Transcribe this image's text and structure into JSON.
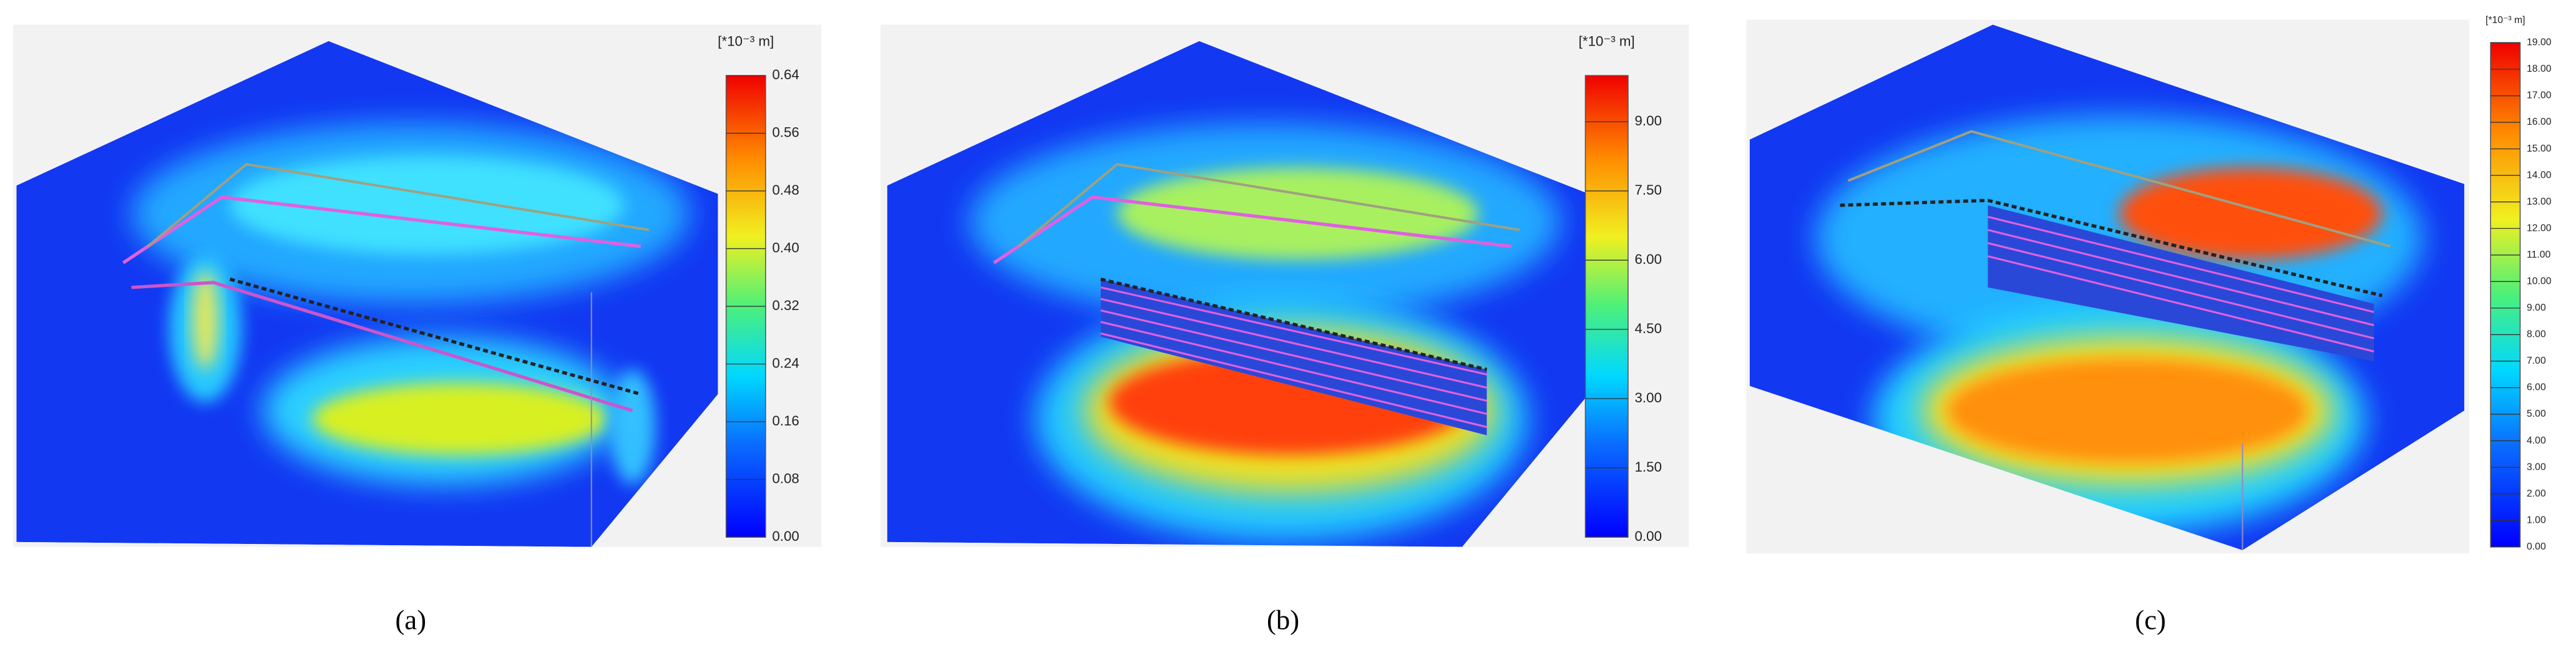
{
  "panels": [
    {
      "caption": "(a)",
      "unit": "[*10⁻³ m]",
      "lim": [
        0,
        0.64
      ],
      "ticks": [
        {
          "value": 0,
          "label": "0.00"
        },
        {
          "value": 0.08,
          "label": "0.08"
        },
        {
          "value": 0.16,
          "label": "0.16"
        },
        {
          "value": 0.24,
          "label": "0.24"
        },
        {
          "value": 0.32,
          "label": "0.32"
        },
        {
          "value": 0.4,
          "label": "0.40"
        },
        {
          "value": 0.48,
          "label": "0.48"
        },
        {
          "value": 0.56,
          "label": "0.56"
        },
        {
          "value": 0.64,
          "label": "0.64"
        }
      ]
    },
    {
      "caption": "(b)",
      "unit": "[*10⁻³ m]",
      "lim": [
        0,
        10
      ],
      "ticks": [
        {
          "value": 0,
          "label": "0.00"
        },
        {
          "value": 1.5,
          "label": "1.50"
        },
        {
          "value": 3,
          "label": "3.00"
        },
        {
          "value": 4.5,
          "label": "4.50"
        },
        {
          "value": 6,
          "label": "6.00"
        },
        {
          "value": 7.5,
          "label": "7.50"
        },
        {
          "value": 9,
          "label": "9.00"
        }
      ]
    },
    {
      "caption": "(c)",
      "unit": "[*10⁻³ m]",
      "lim": [
        0,
        19
      ],
      "ticks": [
        {
          "value": 0,
          "label": "0.00"
        },
        {
          "value": 1,
          "label": "1.00"
        },
        {
          "value": 2,
          "label": "2.00"
        },
        {
          "value": 3,
          "label": "3.00"
        },
        {
          "value": 4,
          "label": "4.00"
        },
        {
          "value": 5,
          "label": "5.00"
        },
        {
          "value": 6,
          "label": "6.00"
        },
        {
          "value": 7,
          "label": "7.00"
        },
        {
          "value": 8,
          "label": "8.00"
        },
        {
          "value": 9,
          "label": "9.00"
        },
        {
          "value": 10,
          "label": "10.00"
        },
        {
          "value": 11,
          "label": "11.00"
        },
        {
          "value": 12,
          "label": "12.00"
        },
        {
          "value": 13,
          "label": "13.00"
        },
        {
          "value": 14,
          "label": "14.00"
        },
        {
          "value": 15,
          "label": "15.00"
        },
        {
          "value": 16,
          "label": "16.00"
        },
        {
          "value": 17,
          "label": "17.00"
        },
        {
          "value": 18,
          "label": "18.00"
        },
        {
          "value": 19,
          "label": "19.00"
        }
      ]
    }
  ]
}
